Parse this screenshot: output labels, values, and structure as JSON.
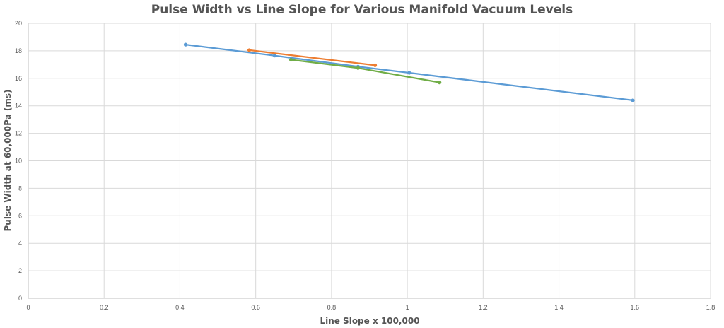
{
  "chart_data": {
    "type": "line",
    "title": "Pulse Width vs Line Slope for Various Manifold Vacuum Levels",
    "xlabel": "Line Slope x 100,000",
    "ylabel": "Pulse Width at 60,000Pa (ms)",
    "xlim": [
      0,
      1.8
    ],
    "ylim": [
      0,
      20
    ],
    "xticks": [
      "0",
      "0.2",
      "0.4",
      "0.6",
      "0.8",
      "1",
      "1.2",
      "1.4",
      "1.6",
      "1.8"
    ],
    "yticks": [
      "0",
      "2",
      "4",
      "6",
      "8",
      "10",
      "12",
      "14",
      "16",
      "18",
      "20"
    ],
    "grid": true,
    "legend": "none",
    "series": [
      {
        "color": "#5b9bd5",
        "points": [
          {
            "x": 0.415,
            "y": 18.45
          },
          {
            "x": 0.65,
            "y": 17.65
          },
          {
            "x": 0.87,
            "y": 16.85
          },
          {
            "x": 1.005,
            "y": 16.4
          },
          {
            "x": 1.595,
            "y": 14.4
          }
        ]
      },
      {
        "color": "#ed7d31",
        "points": [
          {
            "x": 0.583,
            "y": 18.05
          },
          {
            "x": 0.915,
            "y": 16.95
          }
        ]
      },
      {
        "color": "#70ad47",
        "points": [
          {
            "x": 0.693,
            "y": 17.35
          },
          {
            "x": 0.87,
            "y": 16.75
          },
          {
            "x": 1.085,
            "y": 15.7
          }
        ]
      }
    ]
  }
}
